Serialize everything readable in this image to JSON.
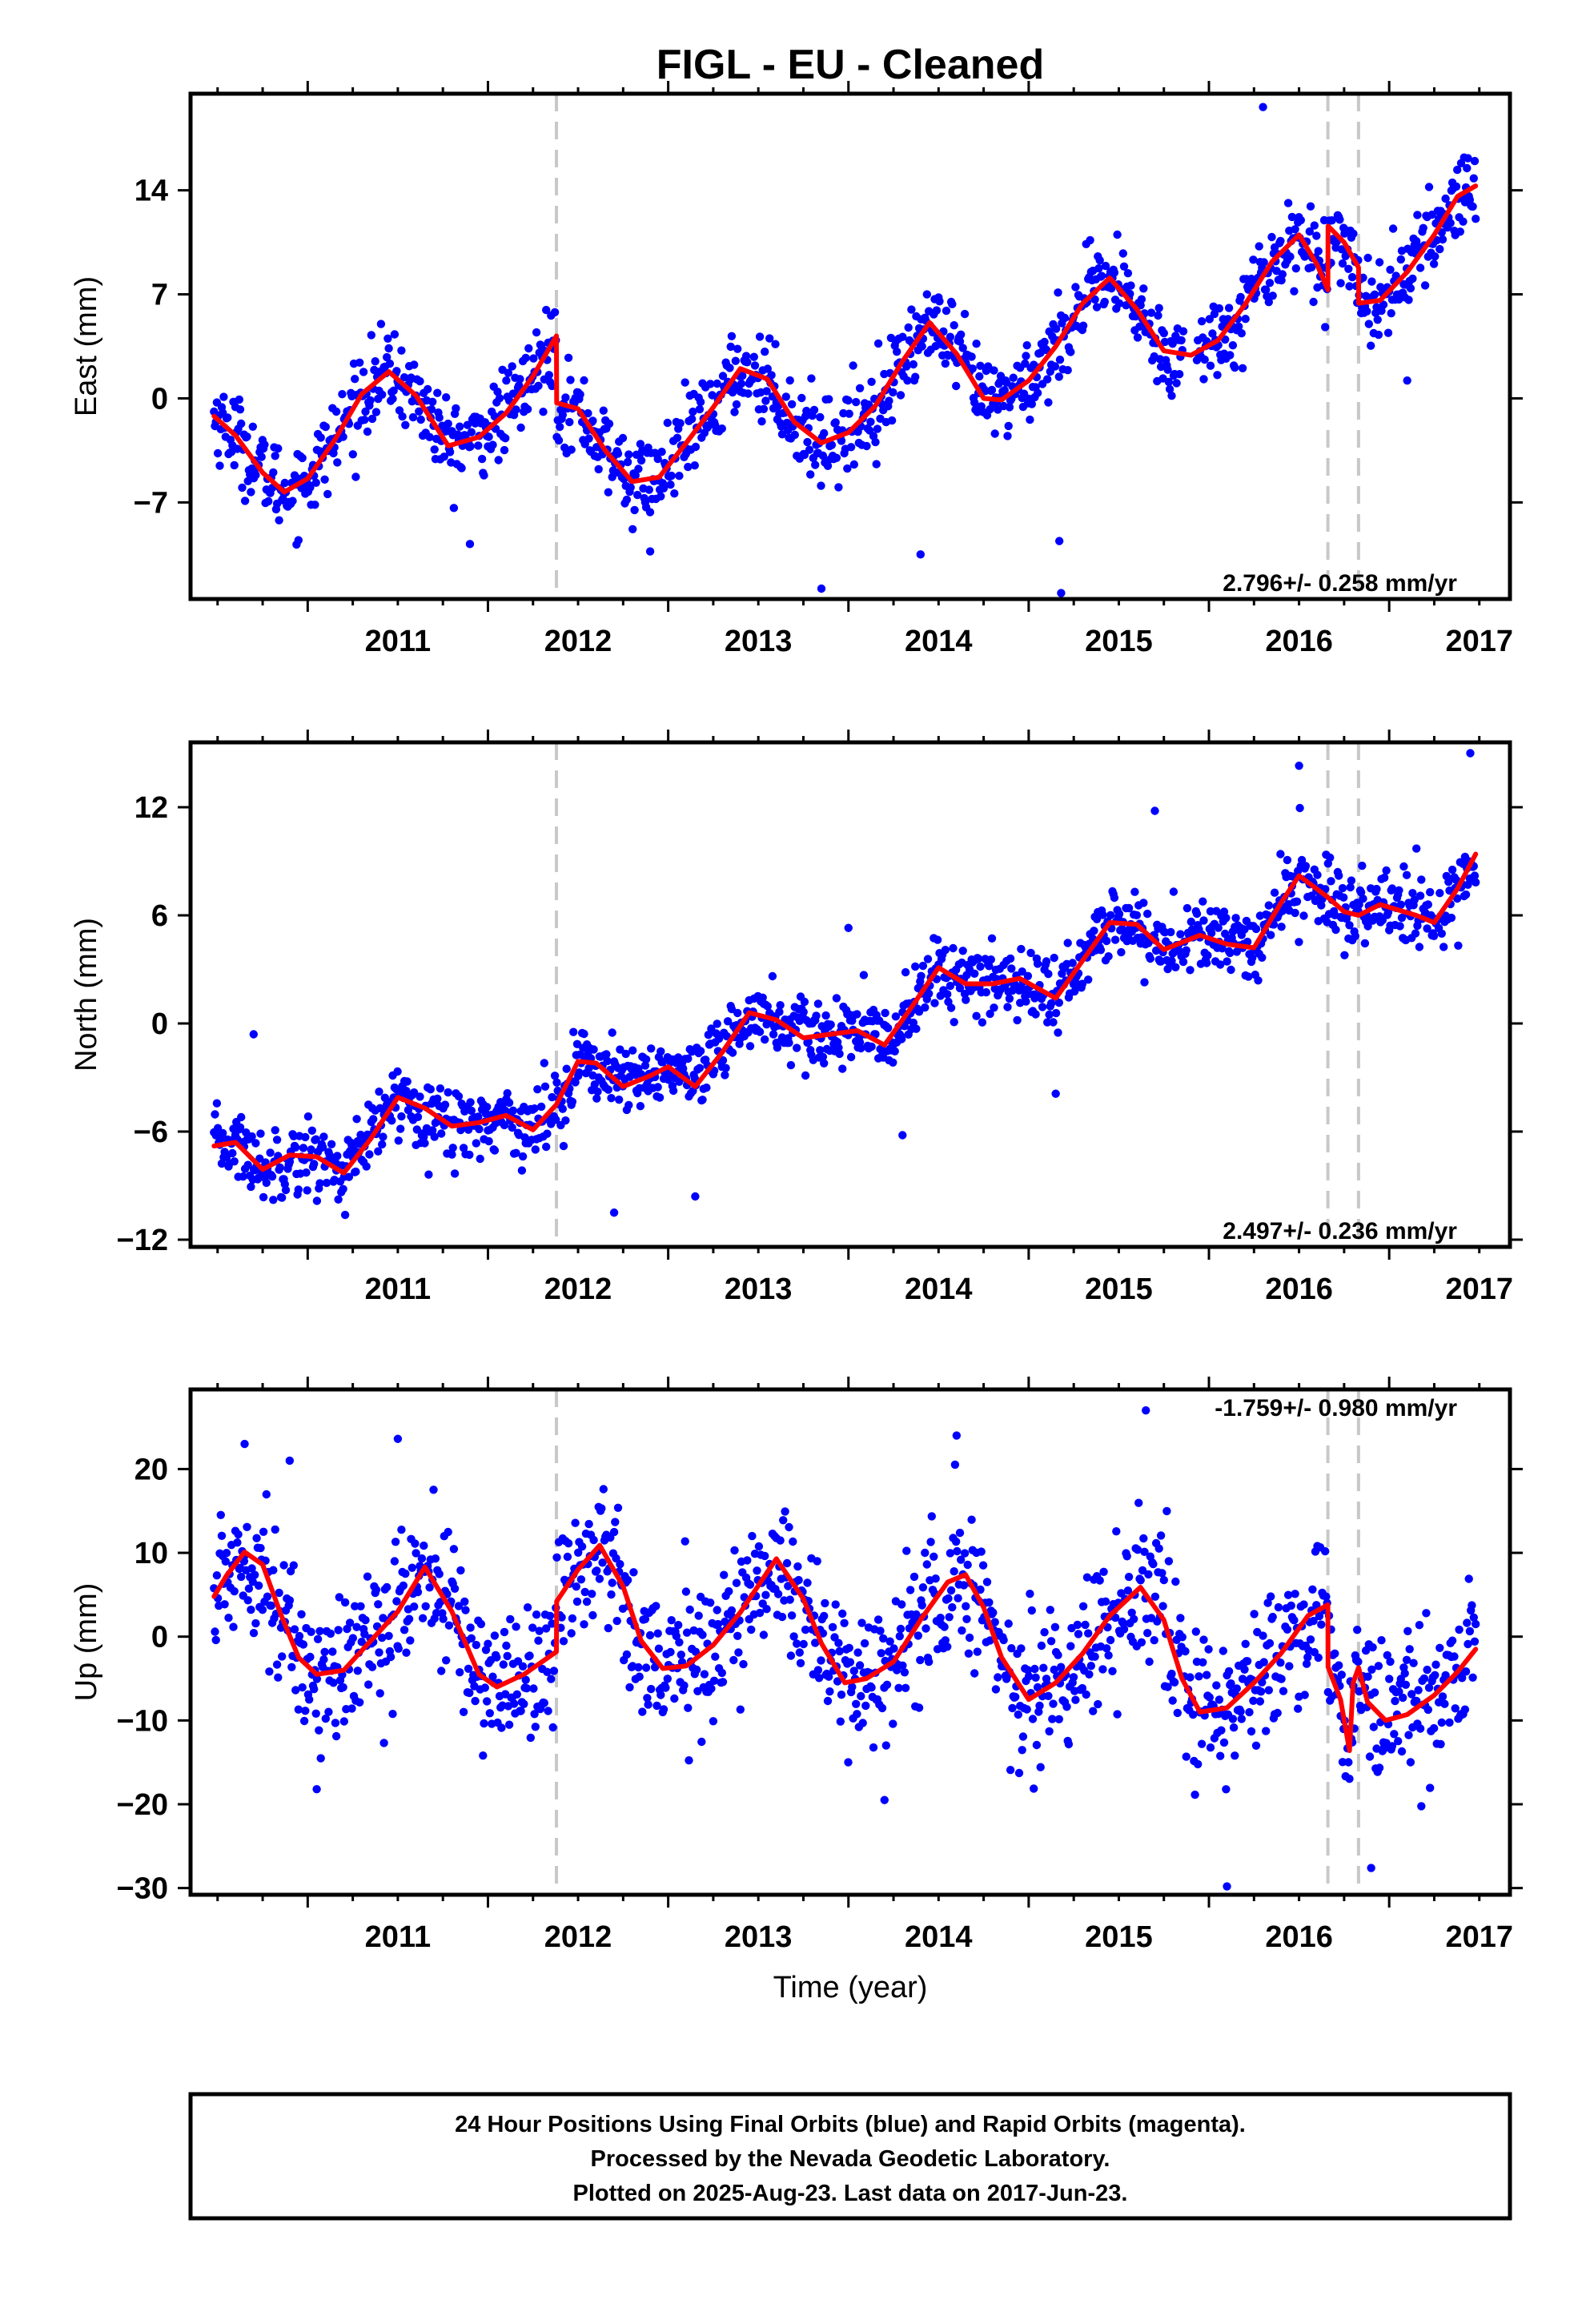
{
  "figure": {
    "title": "FIGL  - EU - Cleaned",
    "xlabel": "Time (year)",
    "footer": [
      "24 Hour Positions Using Final Orbits (blue) and Rapid Orbits (magenta).",
      "Processed by the Nevada Geodetic Laboratory.",
      "Plotted on 2025-Aug-23. Last data on 2017-Jun-23."
    ]
  },
  "colors": {
    "points": "#0000ff",
    "model": "#ff0000",
    "breaks": "#c8c8c8",
    "frame": "#000000"
  },
  "chart_data": [
    {
      "type": "scatter",
      "ylabel": "East (mm)",
      "rate_label": "2.796+/- 0.258 mm/yr",
      "xlim": [
        2010.35,
        2017.67
      ],
      "ylim": [
        -13.5,
        20.5
      ],
      "xticks": [
        2011,
        2012,
        2013,
        2014,
        2015,
        2016,
        2017
      ],
      "yticks": [
        -7,
        0,
        7,
        14
      ],
      "breaks": [
        2012.38,
        2016.66,
        2016.83
      ],
      "data_start": 2010.48,
      "data_end": 2017.48,
      "gap": [
        2015.86,
        2015.93
      ],
      "scatter_sd": 1.4,
      "n_points": 1300,
      "outliers": [
        [
          2013.85,
          -12.8
        ],
        [
          2015.18,
          -13.1
        ],
        [
          2015.17,
          -9.6
        ],
        [
          2011.9,
          -9.8
        ],
        [
          2012.9,
          -10.3
        ],
        [
          2016.3,
          19.6
        ],
        [
          2017.1,
          1.2
        ],
        [
          2014.4,
          -10.5
        ]
      ],
      "model": [
        [
          2010.48,
          -1.2
        ],
        [
          2010.6,
          -2.5
        ],
        [
          2010.75,
          -5.0
        ],
        [
          2010.87,
          -6.3
        ],
        [
          2011.0,
          -5.4
        ],
        [
          2011.15,
          -2.8
        ],
        [
          2011.3,
          0.3
        ],
        [
          2011.45,
          1.8
        ],
        [
          2011.6,
          0.2
        ],
        [
          2011.78,
          -3.2
        ],
        [
          2011.95,
          -2.6
        ],
        [
          2012.1,
          -1.0
        ],
        [
          2012.25,
          1.5
        ],
        [
          2012.38,
          4.2
        ],
        [
          2012.381,
          -0.3
        ],
        [
          2012.5,
          -0.7
        ],
        [
          2012.65,
          -3.5
        ],
        [
          2012.8,
          -5.6
        ],
        [
          2012.95,
          -5.3
        ],
        [
          2013.1,
          -3.0
        ],
        [
          2013.25,
          -0.6
        ],
        [
          2013.4,
          2.0
        ],
        [
          2013.55,
          1.3
        ],
        [
          2013.7,
          -1.6
        ],
        [
          2013.85,
          -3.0
        ],
        [
          2014.0,
          -2.3
        ],
        [
          2014.15,
          -0.5
        ],
        [
          2014.3,
          2.5
        ],
        [
          2014.45,
          5.1
        ],
        [
          2014.6,
          3.0
        ],
        [
          2014.75,
          0.0
        ],
        [
          2014.85,
          -0.1
        ],
        [
          2015.0,
          1.2
        ],
        [
          2015.15,
          3.5
        ],
        [
          2015.3,
          6.4
        ],
        [
          2015.45,
          8.1
        ],
        [
          2015.6,
          6.0
        ],
        [
          2015.75,
          3.2
        ],
        [
          2015.9,
          2.9
        ],
        [
          2016.05,
          3.9
        ],
        [
          2016.2,
          6.3
        ],
        [
          2016.35,
          9.2
        ],
        [
          2016.5,
          11.0
        ],
        [
          2016.6,
          9.0
        ],
        [
          2016.66,
          7.3
        ],
        [
          2016.661,
          11.6
        ],
        [
          2016.75,
          10.5
        ],
        [
          2016.83,
          8.8
        ],
        [
          2016.831,
          6.4
        ],
        [
          2016.95,
          6.6
        ],
        [
          2017.1,
          8.5
        ],
        [
          2017.25,
          11.0
        ],
        [
          2017.38,
          13.6
        ],
        [
          2017.48,
          14.3
        ]
      ]
    },
    {
      "type": "scatter",
      "ylabel": "North (mm)",
      "rate_label": "2.497+/- 0.236 mm/yr",
      "xlim": [
        2010.35,
        2017.67
      ],
      "ylim": [
        -12.4,
        15.6
      ],
      "xticks": [
        2011,
        2012,
        2013,
        2014,
        2015,
        2016,
        2017
      ],
      "yticks": [
        -12,
        -6,
        0,
        6,
        12
      ],
      "breaks": [
        2012.38,
        2016.66,
        2016.83
      ],
      "data_start": 2010.48,
      "data_end": 2017.48,
      "gap": [],
      "scatter_sd": 1.0,
      "n_points": 1300,
      "outliers": [
        [
          2010.7,
          -0.6
        ],
        [
          2012.7,
          -10.5
        ],
        [
          2013.15,
          -9.6
        ],
        [
          2015.15,
          -3.9
        ],
        [
          2015.7,
          11.8
        ],
        [
          2016.5,
          14.3
        ],
        [
          2017.45,
          15.0
        ],
        [
          2014.0,
          5.3
        ],
        [
          2014.3,
          -6.2
        ]
      ],
      "model": [
        [
          2010.48,
          -6.8
        ],
        [
          2010.6,
          -6.6
        ],
        [
          2010.75,
          -8.1
        ],
        [
          2010.9,
          -7.3
        ],
        [
          2011.05,
          -7.4
        ],
        [
          2011.2,
          -8.3
        ],
        [
          2011.35,
          -6.4
        ],
        [
          2011.5,
          -4.1
        ],
        [
          2011.65,
          -4.7
        ],
        [
          2011.8,
          -5.7
        ],
        [
          2011.95,
          -5.5
        ],
        [
          2012.1,
          -5.1
        ],
        [
          2012.25,
          -5.9
        ],
        [
          2012.38,
          -4.5
        ],
        [
          2012.5,
          -2.1
        ],
        [
          2012.6,
          -2.2
        ],
        [
          2012.75,
          -3.5
        ],
        [
          2012.9,
          -2.9
        ],
        [
          2013.0,
          -2.4
        ],
        [
          2013.15,
          -3.5
        ],
        [
          2013.3,
          -1.6
        ],
        [
          2013.45,
          0.6
        ],
        [
          2013.6,
          0.2
        ],
        [
          2013.75,
          -0.8
        ],
        [
          2013.9,
          -0.6
        ],
        [
          2014.05,
          -0.4
        ],
        [
          2014.2,
          -1.2
        ],
        [
          2014.35,
          0.9
        ],
        [
          2014.5,
          3.1
        ],
        [
          2014.65,
          2.2
        ],
        [
          2014.8,
          2.2
        ],
        [
          2014.95,
          2.5
        ],
        [
          2015.15,
          1.4
        ],
        [
          2015.3,
          3.5
        ],
        [
          2015.45,
          5.6
        ],
        [
          2015.6,
          5.5
        ],
        [
          2015.75,
          4.1
        ],
        [
          2015.95,
          4.9
        ],
        [
          2016.1,
          4.4
        ],
        [
          2016.25,
          4.2
        ],
        [
          2016.4,
          6.7
        ],
        [
          2016.5,
          8.2
        ],
        [
          2016.66,
          7.0
        ],
        [
          2016.75,
          6.2
        ],
        [
          2016.83,
          6.0
        ],
        [
          2016.95,
          6.6
        ],
        [
          2017.15,
          6.0
        ],
        [
          2017.25,
          5.6
        ],
        [
          2017.38,
          7.5
        ],
        [
          2017.48,
          9.4
        ]
      ]
    },
    {
      "type": "scatter",
      "ylabel": "Up (mm)",
      "rate_label": "-1.759+/- 0.980 mm/yr",
      "xlim": [
        2010.35,
        2017.67
      ],
      "ylim": [
        -30.8,
        29.5
      ],
      "xticks": [
        2011,
        2012,
        2013,
        2014,
        2015,
        2016,
        2017
      ],
      "yticks": [
        -30,
        -20,
        -10,
        0,
        10,
        20
      ],
      "breaks": [
        2012.38,
        2016.66,
        2016.83
      ],
      "data_start": 2010.48,
      "data_end": 2017.48,
      "gap": [],
      "scatter_sd": 4.3,
      "n_points": 1300,
      "outliers": [
        [
          2015.65,
          27.0
        ],
        [
          2010.65,
          23.0
        ],
        [
          2011.5,
          23.6
        ],
        [
          2014.6,
          24.0
        ],
        [
          2016.1,
          -29.8
        ],
        [
          2016.9,
          -27.6
        ],
        [
          2014.2,
          -19.5
        ],
        [
          2011.05,
          -18.2
        ],
        [
          2010.9,
          21.0
        ]
      ],
      "model": [
        [
          2010.48,
          4.8
        ],
        [
          2010.55,
          7.3
        ],
        [
          2010.65,
          10.1
        ],
        [
          2010.75,
          8.6
        ],
        [
          2010.85,
          2.7
        ],
        [
          2010.95,
          -2.5
        ],
        [
          2011.05,
          -4.5
        ],
        [
          2011.2,
          -4.0
        ],
        [
          2011.35,
          -0.5
        ],
        [
          2011.5,
          3.0
        ],
        [
          2011.65,
          8.3
        ],
        [
          2011.8,
          3.0
        ],
        [
          2011.95,
          -4.5
        ],
        [
          2012.05,
          -6.0
        ],
        [
          2012.2,
          -4.5
        ],
        [
          2012.38,
          -1.8
        ],
        [
          2012.381,
          4.2
        ],
        [
          2012.5,
          8.0
        ],
        [
          2012.62,
          10.9
        ],
        [
          2012.75,
          6.0
        ],
        [
          2012.85,
          -0.5
        ],
        [
          2012.97,
          -3.8
        ],
        [
          2013.1,
          -3.5
        ],
        [
          2013.25,
          -1.0
        ],
        [
          2013.4,
          2.9
        ],
        [
          2013.6,
          9.3
        ],
        [
          2013.75,
          4.5
        ],
        [
          2013.85,
          -0.8
        ],
        [
          2013.98,
          -5.5
        ],
        [
          2014.1,
          -5.0
        ],
        [
          2014.25,
          -3.0
        ],
        [
          2014.4,
          2.0
        ],
        [
          2014.55,
          6.5
        ],
        [
          2014.65,
          7.4
        ],
        [
          2014.75,
          3.5
        ],
        [
          2014.85,
          -2.5
        ],
        [
          2015.0,
          -7.5
        ],
        [
          2015.15,
          -5.5
        ],
        [
          2015.3,
          -2.0
        ],
        [
          2015.45,
          2.5
        ],
        [
          2015.62,
          5.9
        ],
        [
          2015.75,
          2.0
        ],
        [
          2015.85,
          -5.0
        ],
        [
          2015.95,
          -9.0
        ],
        [
          2016.1,
          -8.5
        ],
        [
          2016.25,
          -5.5
        ],
        [
          2016.4,
          -2.0
        ],
        [
          2016.55,
          2.5
        ],
        [
          2016.66,
          3.8
        ],
        [
          2016.661,
          -3.6
        ],
        [
          2016.73,
          -7.5
        ],
        [
          2016.78,
          -13.6
        ],
        [
          2016.8,
          -5.5
        ],
        [
          2016.83,
          -3.7
        ],
        [
          2016.88,
          -7.8
        ],
        [
          2016.98,
          -10.0
        ],
        [
          2017.1,
          -9.3
        ],
        [
          2017.25,
          -7.0
        ],
        [
          2017.38,
          -4.2
        ],
        [
          2017.48,
          -1.5
        ]
      ]
    }
  ]
}
